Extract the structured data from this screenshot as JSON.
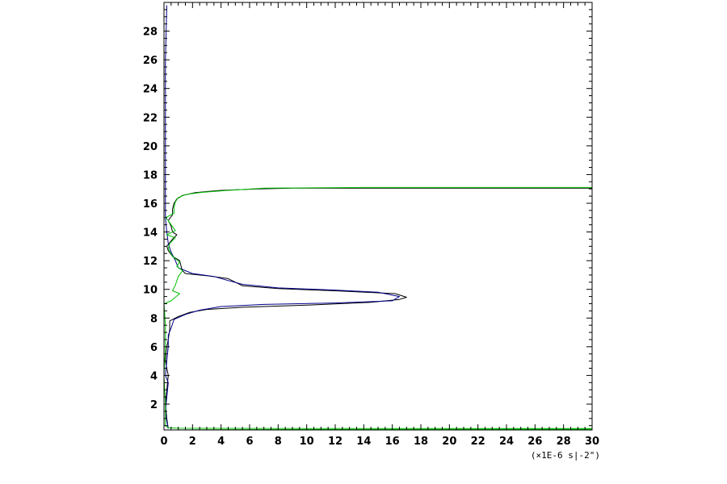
{
  "chart_data": {
    "type": "line",
    "title": "",
    "xlabel": "",
    "ylabel": "",
    "x_unit_label": "(×1E-6 s|-2\")",
    "xlim": [
      0,
      30
    ],
    "ylim": [
      0.2,
      30
    ],
    "x_ticks": [
      "0",
      "2",
      "4",
      "6",
      "8",
      "10",
      "12",
      "14",
      "16",
      "18",
      "20",
      "22",
      "24",
      "26",
      "28",
      "30"
    ],
    "y_ticks": [
      "2",
      "4",
      "6",
      "8",
      "10",
      "12",
      "14",
      "16",
      "18",
      "20",
      "22",
      "24",
      "26",
      "28"
    ],
    "grid": false,
    "legend": "none",
    "colors": {
      "black": "#000000",
      "blue": "#00008b",
      "green": "#00c000",
      "axis": "#000000"
    },
    "series": [
      {
        "color": "black",
        "points": [
          [
            0.3,
            0.3
          ],
          [
            0.2,
            1.0
          ],
          [
            0.1,
            2.0
          ],
          [
            0.2,
            3.0
          ],
          [
            0.3,
            4.0
          ],
          [
            0.1,
            5.0
          ],
          [
            0.2,
            6.0
          ],
          [
            0.3,
            6.5
          ],
          [
            0.4,
            7.2
          ],
          [
            0.4,
            7.8
          ],
          [
            1.0,
            8.1
          ],
          [
            1.8,
            8.4
          ],
          [
            3.0,
            8.6
          ],
          [
            5.5,
            8.75
          ],
          [
            10.0,
            8.9
          ],
          [
            14.5,
            9.1
          ],
          [
            16.5,
            9.3
          ],
          [
            17.0,
            9.45
          ],
          [
            16.2,
            9.7
          ],
          [
            12.0,
            9.9
          ],
          [
            8.0,
            10.05
          ],
          [
            5.5,
            10.25
          ],
          [
            5.0,
            10.5
          ],
          [
            4.5,
            10.75
          ],
          [
            3.0,
            10.95
          ],
          [
            1.5,
            11.1
          ],
          [
            1.3,
            11.3
          ],
          [
            1.2,
            11.6
          ],
          [
            1.1,
            12.0
          ],
          [
            0.6,
            12.3
          ],
          [
            0.3,
            12.7
          ],
          [
            0.2,
            13.0
          ],
          [
            0.6,
            13.5
          ],
          [
            0.9,
            13.8
          ],
          [
            0.6,
            14.0
          ],
          [
            0.5,
            14.4
          ],
          [
            0.3,
            14.8
          ],
          [
            0.6,
            15.2
          ],
          [
            0.6,
            15.6
          ],
          [
            0.7,
            16.0
          ],
          [
            0.9,
            16.3
          ],
          [
            1.3,
            16.55
          ],
          [
            2.2,
            16.75
          ],
          [
            4.0,
            16.9
          ],
          [
            6.5,
            17.0
          ],
          [
            9.0,
            17.05
          ],
          [
            14.0,
            17.05
          ],
          [
            30.0,
            17.05
          ]
        ]
      },
      {
        "color": "blue",
        "points": [
          [
            0.2,
            29.8
          ],
          [
            0.1,
            26.0
          ],
          [
            0.1,
            22.0
          ],
          [
            0.1,
            18.0
          ],
          [
            0.1,
            17.0
          ],
          [
            0.1,
            16.0
          ],
          [
            0.1,
            15.0
          ],
          [
            0.2,
            14.0
          ],
          [
            0.3,
            13.2
          ],
          [
            0.5,
            12.6
          ],
          [
            0.8,
            12.0
          ],
          [
            1.0,
            11.5
          ],
          [
            2.0,
            11.1
          ],
          [
            3.5,
            10.9
          ],
          [
            4.2,
            10.7
          ],
          [
            5.5,
            10.35
          ],
          [
            8.0,
            10.1
          ],
          [
            12.0,
            9.95
          ],
          [
            15.0,
            9.8
          ],
          [
            16.5,
            9.5
          ],
          [
            16.0,
            9.2
          ],
          [
            12.0,
            9.05
          ],
          [
            7.0,
            8.95
          ],
          [
            4.0,
            8.8
          ],
          [
            2.5,
            8.55
          ],
          [
            1.5,
            8.25
          ],
          [
            0.7,
            7.9
          ],
          [
            0.5,
            7.3
          ],
          [
            0.3,
            6.8
          ],
          [
            0.3,
            6.0
          ],
          [
            0.2,
            5.0
          ],
          [
            0.1,
            4.0
          ],
          [
            0.3,
            3.5
          ],
          [
            0.2,
            2.5
          ],
          [
            0.1,
            1.5
          ],
          [
            0.2,
            0.8
          ],
          [
            0.3,
            0.3
          ]
        ]
      },
      {
        "color": "green",
        "points": [
          [
            0.1,
            0.2
          ],
          [
            5.0,
            0.22
          ],
          [
            30.0,
            0.25
          ],
          [
            30.0,
            0.3
          ],
          [
            10.0,
            0.3
          ],
          [
            1.0,
            0.32
          ],
          [
            0.3,
            0.35
          ],
          [
            0.1,
            0.5
          ],
          [
            0.1,
            2.0
          ],
          [
            0.0,
            4.0
          ],
          [
            0.1,
            6.0
          ],
          [
            0.1,
            7.5
          ],
          [
            0.0,
            9.0
          ],
          [
            0.5,
            9.2
          ],
          [
            1.1,
            9.7
          ],
          [
            0.6,
            9.9
          ],
          [
            0.8,
            10.3
          ],
          [
            1.0,
            10.9
          ],
          [
            1.3,
            11.3
          ],
          [
            0.9,
            11.6
          ],
          [
            1.1,
            11.9
          ],
          [
            0.6,
            12.3
          ],
          [
            0.3,
            12.8
          ],
          [
            0.4,
            13.2
          ],
          [
            0.8,
            13.6
          ],
          [
            0.2,
            13.8
          ],
          [
            0.8,
            14.1
          ],
          [
            0.5,
            14.5
          ],
          [
            0.3,
            14.8
          ],
          [
            0.1,
            15.0
          ],
          [
            0.7,
            15.3
          ],
          [
            0.7,
            15.7
          ],
          [
            0.8,
            16.1
          ],
          [
            1.0,
            16.4
          ],
          [
            1.5,
            16.6
          ],
          [
            2.5,
            16.75
          ],
          [
            4.5,
            16.9
          ],
          [
            7.0,
            17.05
          ],
          [
            14.0,
            17.1
          ],
          [
            30.0,
            17.1
          ]
        ]
      }
    ]
  }
}
